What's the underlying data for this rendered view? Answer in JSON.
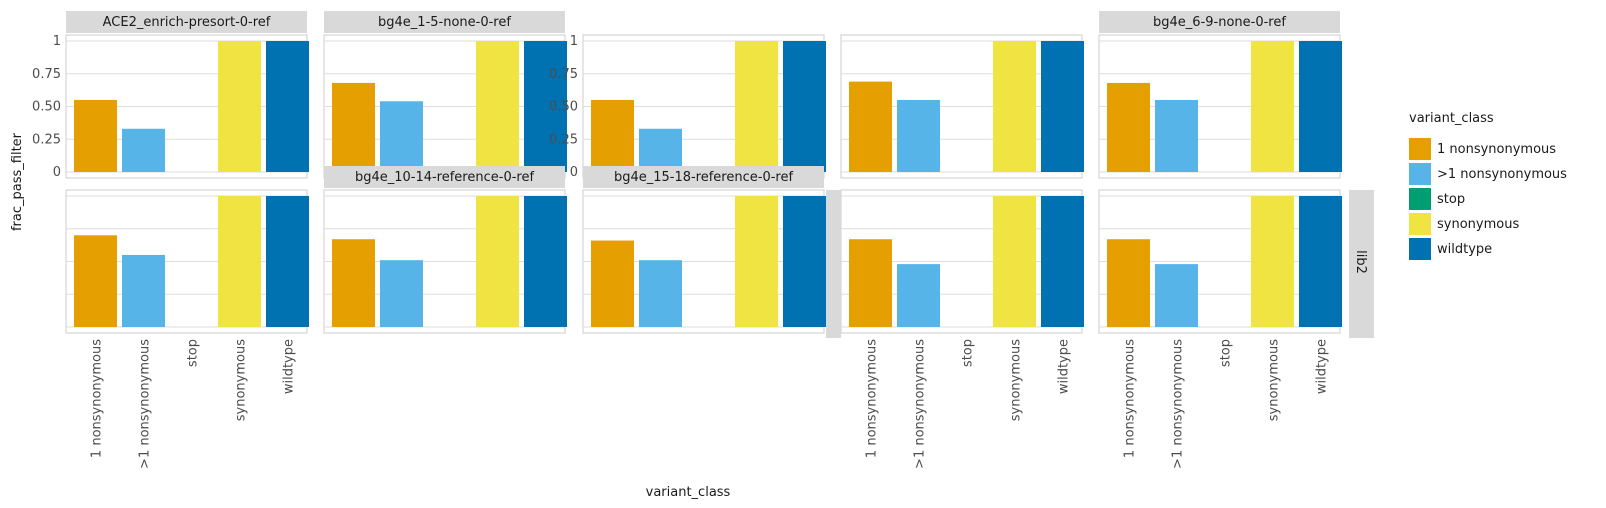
{
  "chart_data": {
    "type": "bar",
    "xlabel": "variant_class",
    "ylabel": "frac_pass_filter",
    "categories": [
      "1 nonsynonymous",
      ">1 nonsynonymous",
      "stop",
      "synonymous",
      "wildtype"
    ],
    "ylim": [
      0,
      1
    ],
    "y_ticks": [
      0,
      0.25,
      0.5,
      0.75,
      1
    ],
    "y_tick_labels": [
      "0",
      "0.25",
      "0.50",
      "0.75",
      "1"
    ],
    "grid": true,
    "legend": {
      "title": "variant_class",
      "position": "right",
      "entries": [
        {
          "label": "1 nonsynonymous",
          "color": "#E69F00"
        },
        {
          "label": ">1 nonsynonymous",
          "color": "#56B4E9"
        },
        {
          "label": "stop",
          "color": "#009E73"
        },
        {
          "label": "synonymous",
          "color": "#F0E442"
        },
        {
          "label": "wildtype",
          "color": "#0072B2"
        }
      ]
    },
    "row_strip": "lib2",
    "panels": [
      {
        "title": "ACE2_enrich-presort-0-ref",
        "values": [
          0.55,
          0.33,
          0,
          1,
          1
        ]
      },
      {
        "title": "bg4e_1-5-none-0-ref",
        "values": [
          0.68,
          0.54,
          0,
          1,
          1
        ]
      },
      {
        "title": "",
        "values": [
          0.55,
          0.33,
          0,
          1,
          1
        ]
      },
      {
        "title": "",
        "values": [
          0.69,
          0.55,
          0,
          1,
          1
        ]
      },
      {
        "title": "bg4e_6-9-none-0-ref",
        "values": [
          0.68,
          0.55,
          0,
          1,
          1
        ]
      },
      {
        "title": "",
        "values": [
          0.7,
          0.55,
          0,
          1,
          1
        ]
      },
      {
        "title": "bg4e_10-14-reference-0-ref",
        "values": [
          0.67,
          0.51,
          0,
          1,
          1
        ]
      },
      {
        "title": "bg4e_15-18-reference-0-ref",
        "values": [
          0.66,
          0.51,
          0,
          1,
          1
        ]
      },
      {
        "title": "",
        "values": [
          0.67,
          0.48,
          0,
          1,
          1
        ]
      },
      {
        "title": "",
        "values": [
          0.67,
          0.48,
          0,
          1,
          1
        ]
      }
    ]
  }
}
